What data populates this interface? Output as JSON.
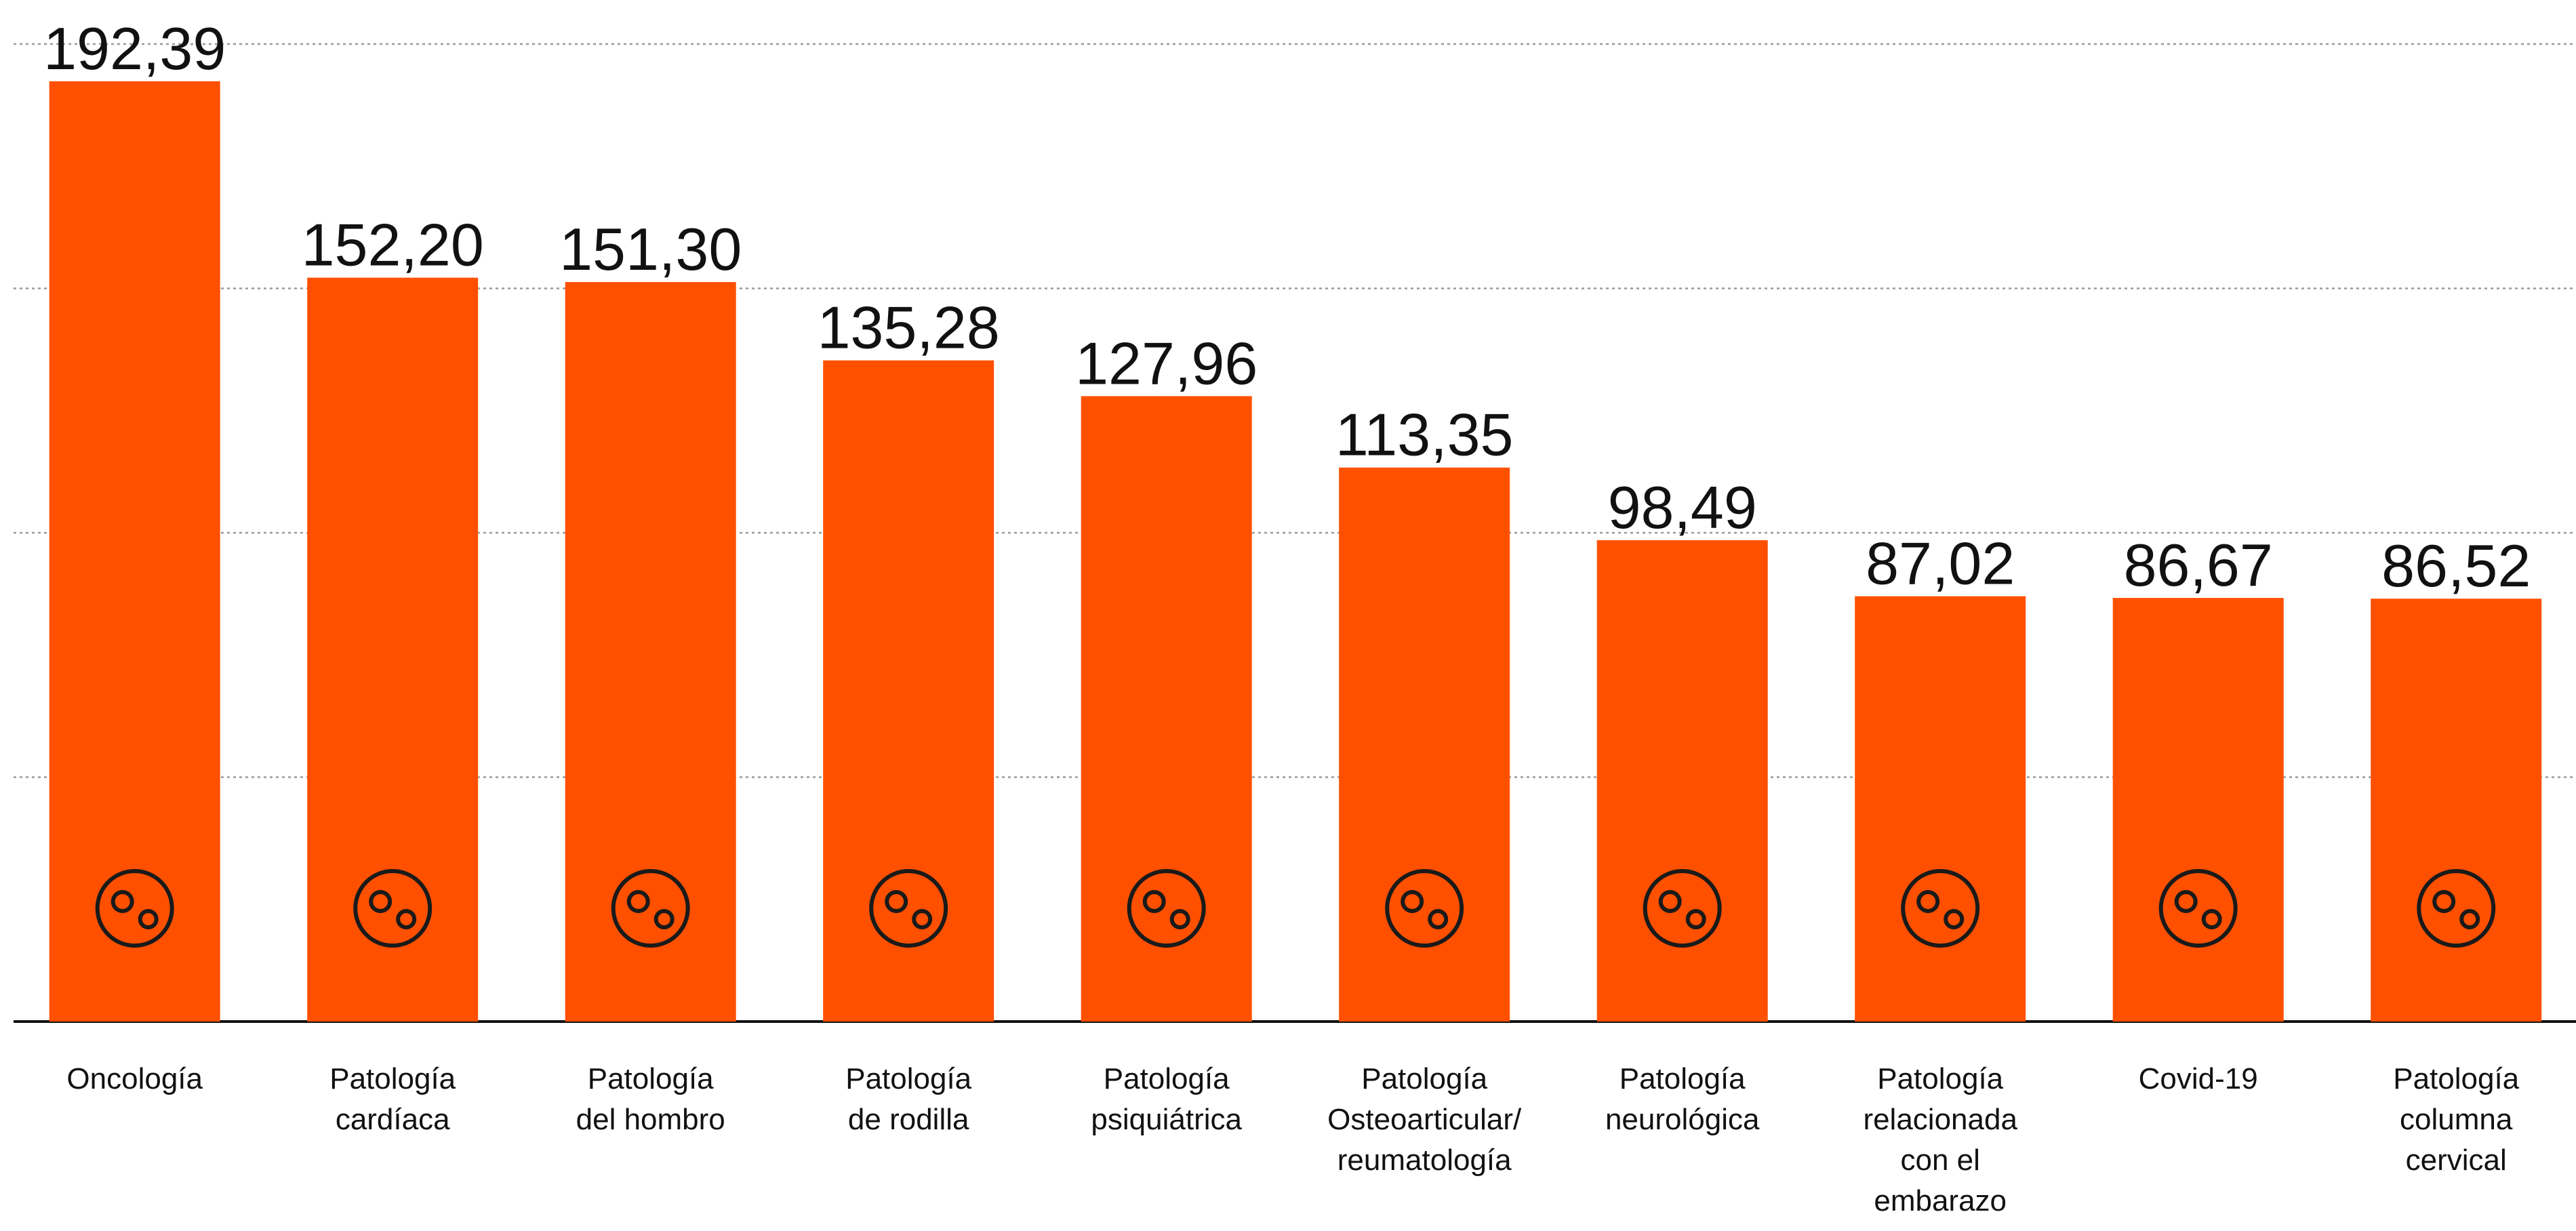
{
  "chart_data": {
    "type": "bar",
    "categories": [
      "Oncología",
      "Patología\ncardíaca",
      "Patología\ndel hombro",
      "Patología\nde rodilla",
      "Patología\npsiquiátrica",
      "Patología\nOsteoarticular/\nreumatología",
      "Patología\nneurológica",
      "Patología\nrelacionada\ncon el\nembarazo",
      "Covid-19",
      "Patología\ncolumna\ncervical"
    ],
    "values": [
      192.39,
      152.2,
      151.3,
      135.28,
      127.96,
      113.35,
      98.49,
      87.02,
      86.67,
      86.52
    ],
    "value_labels": [
      "192,39",
      "152,20",
      "151,30",
      "135,28",
      "127,96",
      "113,35",
      "98,49",
      "87,02",
      "86,67",
      "86,52"
    ],
    "color": "#ff5000",
    "ylim": [
      0,
      200
    ],
    "yticks": [
      0,
      50,
      100,
      150,
      200
    ],
    "grid": true
  }
}
